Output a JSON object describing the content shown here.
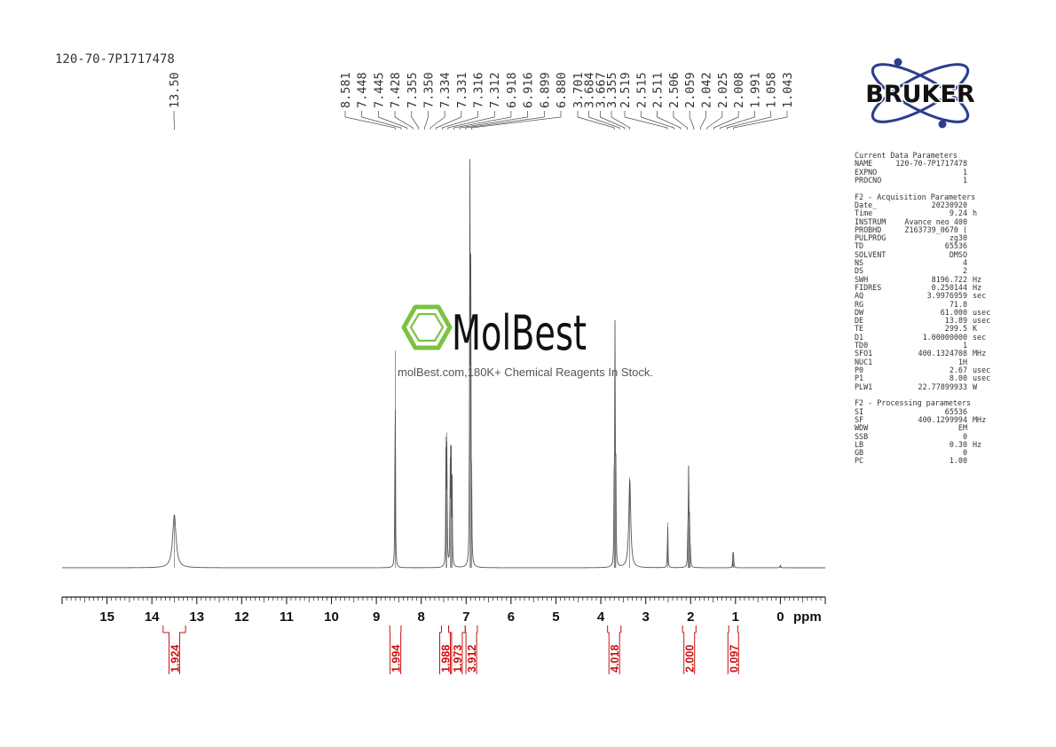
{
  "sample_id": "120-70-7P1717478",
  "brand": {
    "name": "BRUKER"
  },
  "watermark": {
    "name": "MolBest",
    "tagline": "molBest.com,180K+ Chemical Reagents In Stock."
  },
  "colors": {
    "spectrum": "#555555",
    "integral": "#cc1111",
    "logo_blue": "#2b3e8f",
    "logo_text": "#111111",
    "watermark_green": "#7cc242"
  },
  "parameters": {
    "sections": [
      {
        "title": "Current Data Parameters",
        "rows": [
          [
            "NAME",
            "120-70-7P1717478",
            ""
          ],
          [
            "EXPNO",
            "1",
            ""
          ],
          [
            "PROCNO",
            "1",
            ""
          ]
        ]
      },
      {
        "title": "F2 - Acquisition Parameters",
        "rows": [
          [
            "Date_",
            "20230920",
            ""
          ],
          [
            "Time",
            "9.24",
            "h"
          ],
          [
            "INSTRUM",
            "Avance neo 400",
            ""
          ],
          [
            "PROBHD",
            "Z163739_0670 (",
            ""
          ],
          [
            "PULPROG",
            "zg30",
            ""
          ],
          [
            "TD",
            "65536",
            ""
          ],
          [
            "SOLVENT",
            "DMSO",
            ""
          ],
          [
            "NS",
            "4",
            ""
          ],
          [
            "DS",
            "2",
            ""
          ],
          [
            "SWH",
            "8196.722",
            "Hz"
          ],
          [
            "FIDRES",
            "0.250144",
            "Hz"
          ],
          [
            "AQ",
            "3.9976959",
            "sec"
          ],
          [
            "RG",
            "71.8",
            ""
          ],
          [
            "DW",
            "61.000",
            "usec"
          ],
          [
            "DE",
            "13.89",
            "usec"
          ],
          [
            "TE",
            "299.5",
            "K"
          ],
          [
            "D1",
            "1.00000000",
            "sec"
          ],
          [
            "TD0",
            "1",
            ""
          ],
          [
            "SFO1",
            "400.1324708",
            "MHz"
          ],
          [
            "NUC1",
            "1H",
            ""
          ],
          [
            "P0",
            "2.67",
            "usec"
          ],
          [
            "P1",
            "8.00",
            "usec"
          ],
          [
            "PLW1",
            "22.77899933",
            "W"
          ]
        ]
      },
      {
        "title": "F2 - Processing parameters",
        "rows": [
          [
            "SI",
            "65536",
            ""
          ],
          [
            "SF",
            "400.1299994",
            "MHz"
          ],
          [
            "WDW",
            "EM",
            ""
          ],
          [
            "SSB",
            "0",
            ""
          ],
          [
            "LB",
            "0.30",
            "Hz"
          ],
          [
            "GB",
            "0",
            ""
          ],
          [
            "PC",
            "1.00",
            ""
          ]
        ]
      }
    ]
  },
  "chart_data": {
    "type": "line",
    "xlabel": "ppm",
    "xlim": [
      16,
      -1
    ],
    "x_reversed": true,
    "x_ticks": [
      15,
      14,
      13,
      12,
      11,
      10,
      9,
      8,
      7,
      6,
      5,
      4,
      3,
      2,
      1,
      0
    ],
    "y_axis_visible": false,
    "grid": false,
    "peaks": [
      {
        "ppm": 13.5,
        "height": 0.13,
        "width": 0.045
      },
      {
        "ppm": 8.581,
        "height": 0.53,
        "width": 0.006
      },
      {
        "ppm": 7.448,
        "height": 0.32,
        "width": 0.006
      },
      {
        "ppm": 7.428,
        "height": 0.33,
        "width": 0.006
      },
      {
        "ppm": 7.355,
        "height": 0.3,
        "width": 0.006
      },
      {
        "ppm": 7.334,
        "height": 0.29,
        "width": 0.006
      },
      {
        "ppm": 7.312,
        "height": 0.2,
        "width": 0.006
      },
      {
        "ppm": 6.918,
        "height": 0.95,
        "width": 0.006
      },
      {
        "ppm": 6.899,
        "height": 0.74,
        "width": 0.006
      },
      {
        "ppm": 6.88,
        "height": 0.2,
        "width": 0.006
      },
      {
        "ppm": 3.701,
        "height": 0.25,
        "width": 0.006
      },
      {
        "ppm": 3.684,
        "height": 0.56,
        "width": 0.006
      },
      {
        "ppm": 3.667,
        "height": 0.24,
        "width": 0.006
      },
      {
        "ppm": 3.355,
        "height": 0.22,
        "width": 0.025
      },
      {
        "ppm": 2.511,
        "height": 0.11,
        "width": 0.007
      },
      {
        "ppm": 2.059,
        "height": 0.12,
        "width": 0.006
      },
      {
        "ppm": 2.042,
        "height": 0.25,
        "width": 0.006
      },
      {
        "ppm": 2.025,
        "height": 0.1,
        "width": 0.006
      },
      {
        "ppm": 2.008,
        "height": 0.05,
        "width": 0.006
      },
      {
        "ppm": 1.058,
        "height": 0.037,
        "width": 0.006
      },
      {
        "ppm": 1.043,
        "height": 0.033,
        "width": 0.006
      },
      {
        "ppm": 0.0,
        "height": 0.006,
        "width": 0.01
      }
    ],
    "peak_groups": [
      {
        "labels": [
          "13.50"
        ],
        "ppm_from": 13.5,
        "ppm_to": 13.5
      },
      {
        "labels": [
          "8.581",
          "7.448",
          "7.445",
          "7.428",
          "7.355",
          "7.350",
          "7.334",
          "7.331",
          "7.316",
          "7.312",
          "6.918",
          "6.916",
          "6.899",
          "6.880"
        ],
        "ppm_from": 8.581,
        "ppm_to": 6.88
      },
      {
        "labels": [
          "3.701",
          "3.684",
          "3.667",
          "3.355"
        ],
        "ppm_from": 3.701,
        "ppm_to": 3.355
      },
      {
        "labels": [
          "2.519",
          "2.515",
          "2.511",
          "2.506",
          "2.059",
          "2.042",
          "2.025",
          "2.008",
          "1.991",
          "1.058",
          "1.043"
        ],
        "ppm_from": 2.519,
        "ppm_to": 1.043
      }
    ],
    "integrals": [
      {
        "value": "1.924",
        "from": 13.75,
        "to": 13.25
      },
      {
        "value": "1.994",
        "from": 8.7,
        "to": 8.45
      },
      {
        "value": "1.988",
        "from": 7.55,
        "to": 7.39
      },
      {
        "value": "1.973",
        "from": 7.39,
        "to": 7.02
      },
      {
        "value": "3.912",
        "from": 7.02,
        "to": 6.75
      },
      {
        "value": "4.018",
        "from": 3.85,
        "to": 3.55
      },
      {
        "value": "2.000",
        "from": 2.18,
        "to": 1.88
      },
      {
        "value": "0.097",
        "from": 1.15,
        "to": 0.95
      }
    ]
  }
}
